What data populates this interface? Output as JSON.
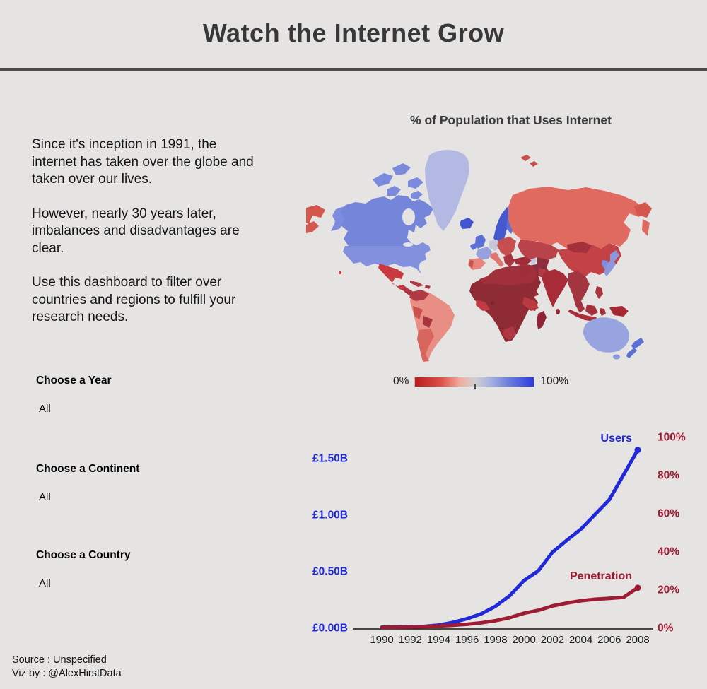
{
  "header": {
    "title": "Watch the Internet Grow"
  },
  "intro": {
    "p1": "Since it's inception in 1991, the internet has taken over the globe and taken over our lives.",
    "p2": "However, nearly 30 years later, imbalances and disadvantages are clear.",
    "p3": "Use this dashboard to filter over countries and regions to fulfill your research needs."
  },
  "filters": [
    {
      "label": "Choose a Year",
      "value": "All"
    },
    {
      "label": "Choose a Continent",
      "value": "All"
    },
    {
      "label": "Choose a Country",
      "value": "All"
    }
  ],
  "map": {
    "title": "% of Population that Uses Internet",
    "legend": {
      "min_label": "0%",
      "max_label": "100%",
      "gradient": [
        "#b91c1e 0%",
        "#dc5147 22%",
        "#f3aca0 38%",
        "#d2cfcf 50%",
        "#aab2e2 63%",
        "#6c7ede 79%",
        "#2b3add 100%"
      ]
    },
    "region_colors": {
      "russia_west_tip": "#d4574e",
      "alaska": "#7e8cdd",
      "canada": "#7585da",
      "canadian_arctic": "#7b8add",
      "greenland": "#b3b9e2",
      "iceland": "#4156cc",
      "usa": "#8290de",
      "hawaii": "#c93a40",
      "mexico": "#c93a40",
      "central_america": "#a93642",
      "cuba": "#b03a44",
      "hispaniola": "#a52f3c",
      "brazil": "#e98e85",
      "venezuela_colombia": "#b03a44",
      "peru": "#c9524f",
      "bolivia_paraguay": "#a83440",
      "argentina_chile": "#d8655e",
      "uk": "#5b70d6",
      "ireland": "#5c6fd4",
      "scandinavia": "#4459ce",
      "finland": "#5d6ed6",
      "france": "#97a1dd",
      "germany": "#c5c6da",
      "iberia": "#e8857c",
      "portugal": "#c9524f",
      "italy": "#dd766d",
      "eastern_europe": "#c44f4e",
      "balkans": "#a83440",
      "russia": "#e06a60",
      "chukotka": "#d4574e",
      "kamchatka": "#e06a60",
      "central_asia": "#b8434a",
      "stans": "#8f2e3c",
      "china": "#c24246",
      "mongolia": "#a52f3a",
      "japan": "#8d97dd",
      "korea": "#7c8ce0",
      "turkey": "#a02c38",
      "iraq_syria": "#a83440",
      "iran": "#8f2e3e",
      "saudi_arabia": "#e8837a",
      "yemen_oman": "#9c3038",
      "pakistan": "#b03a44",
      "india": "#a82c38",
      "sri_lanka": "#8f2b35",
      "se_asia": "#a33540",
      "philippines": "#a83440",
      "borneo": "#a52f3a",
      "indonesia": "#ab2f3a",
      "sulawesi": "#a52f3a",
      "new_guinea": "#a52832",
      "svalbard": "#c94f4e",
      "africa": "#8f2b35",
      "north_africa": "#a03039",
      "egypt": "#9e2f3a",
      "west_africa": "#c23a42",
      "horn_of_africa": "#b93a42",
      "south_africa": "#b03642",
      "gulf_of_guinea_island": "#7e2530",
      "madagascar": "#8e2436",
      "australia": "#98a4e0",
      "tasmania": "#8a98dd",
      "new_zealand": "#5b6fd4",
      "caspian_sea": "#c2c6de"
    }
  },
  "chart_data": {
    "type": "line",
    "title": "",
    "x": [
      1990,
      1991,
      1992,
      1993,
      1994,
      1995,
      1996,
      1997,
      1998,
      1999,
      2000,
      2001,
      2002,
      2003,
      2004,
      2005,
      2006,
      2007,
      2008
    ],
    "x_ticks": [
      1990,
      1992,
      1994,
      1996,
      1998,
      2000,
      2002,
      2004,
      2006,
      2008
    ],
    "series": [
      {
        "name": "Users",
        "axis": "left",
        "color": "#2128d8",
        "unit": "billions",
        "values": [
          0.003,
          0.005,
          0.007,
          0.01,
          0.021,
          0.045,
          0.078,
          0.121,
          0.188,
          0.281,
          0.415,
          0.5,
          0.665,
          0.77,
          0.87,
          1.0,
          1.13,
          1.35,
          1.57
        ]
      },
      {
        "name": "Penetration",
        "axis": "right",
        "color": "#9e1c33",
        "unit": "percent",
        "values": [
          0.1,
          0.2,
          0.3,
          0.5,
          0.8,
          1.2,
          1.7,
          2.5,
          3.6,
          5.2,
          7.5,
          9.0,
          11.3,
          12.8,
          14.0,
          14.8,
          15.3,
          15.8,
          20.8
        ]
      }
    ],
    "left_axis": {
      "ticks": [
        "£0.00B",
        "£0.50B",
        "£1.00B",
        "£1.50B"
      ],
      "tick_values": [
        0,
        0.5,
        1.0,
        1.5
      ],
      "color": "#2128d8",
      "range": [
        0,
        1.8
      ]
    },
    "right_axis": {
      "ticks": [
        "0%",
        "20%",
        "40%",
        "60%",
        "80%",
        "100%"
      ],
      "tick_values": [
        0,
        20,
        40,
        60,
        80,
        100
      ],
      "color": "#9e1c33",
      "range": [
        0,
        107
      ]
    },
    "grid": false,
    "legend_position": "inline-labels"
  },
  "footer": {
    "source": "Source : Unspecified",
    "credit": "Viz by :  @AlexHirstData"
  },
  "colors": {
    "background": "#e5e4e3",
    "header_rule": "#4b4b4b",
    "title_text": "#383838",
    "axis_line": "#111111"
  }
}
